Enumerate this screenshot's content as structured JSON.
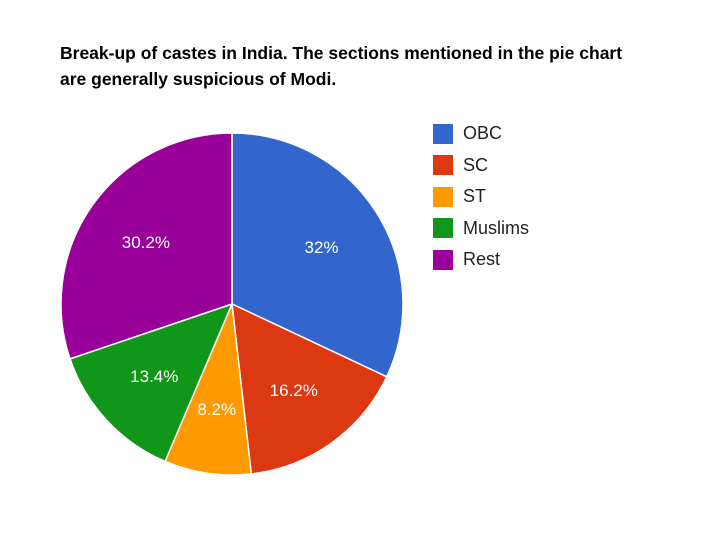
{
  "chart_data": {
    "type": "pie",
    "title": "Break-up of castes in India. The sections mentioned in the pie chart are generally suspicious of Modi.",
    "categories": [
      "OBC",
      "SC",
      "ST",
      "Muslims",
      "Rest"
    ],
    "values": [
      32,
      16.2,
      8.2,
      13.4,
      30.2
    ],
    "labels": [
      "32%",
      "16.2%",
      "8.2%",
      "13.4%",
      "30.2%"
    ],
    "colors": [
      "#3366cc",
      "#dc3912",
      "#ff9900",
      "#109618",
      "#990099"
    ],
    "legend_position": "right"
  }
}
